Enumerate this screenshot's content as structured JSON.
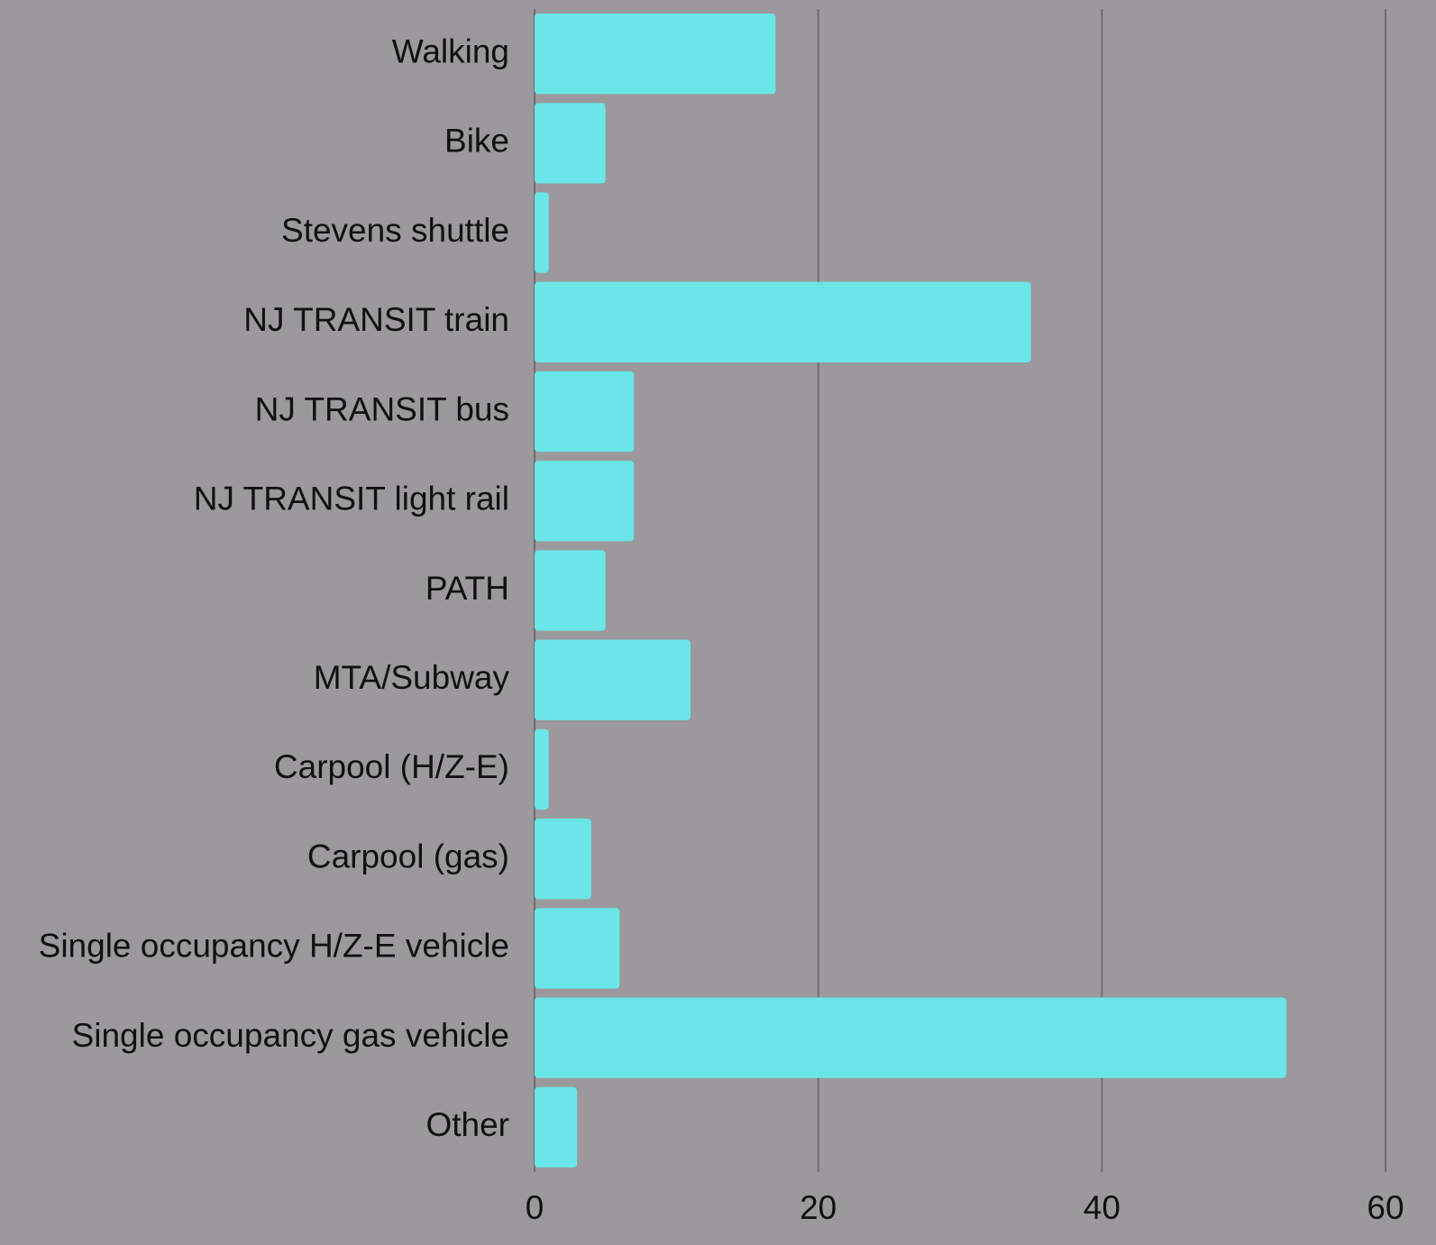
{
  "chart_data": {
    "type": "bar",
    "orientation": "horizontal",
    "categories": [
      "Walking",
      "Bike",
      "Stevens shuttle",
      "NJ TRANSIT train",
      "NJ TRANSIT bus",
      "NJ TRANSIT light rail",
      "PATH",
      "MTA/Subway",
      "Carpool (H/Z-E)",
      "Carpool (gas)",
      "Single occupancy H/Z-E vehicle",
      "Single occupancy gas vehicle",
      "Other"
    ],
    "values": [
      17,
      5,
      1,
      35,
      7,
      7,
      5,
      11,
      1,
      4,
      6,
      53,
      3
    ],
    "color": "#6ae6e8",
    "xlim": [
      0,
      60
    ],
    "xticks": [
      0,
      20,
      40,
      60
    ],
    "grid": true
  }
}
